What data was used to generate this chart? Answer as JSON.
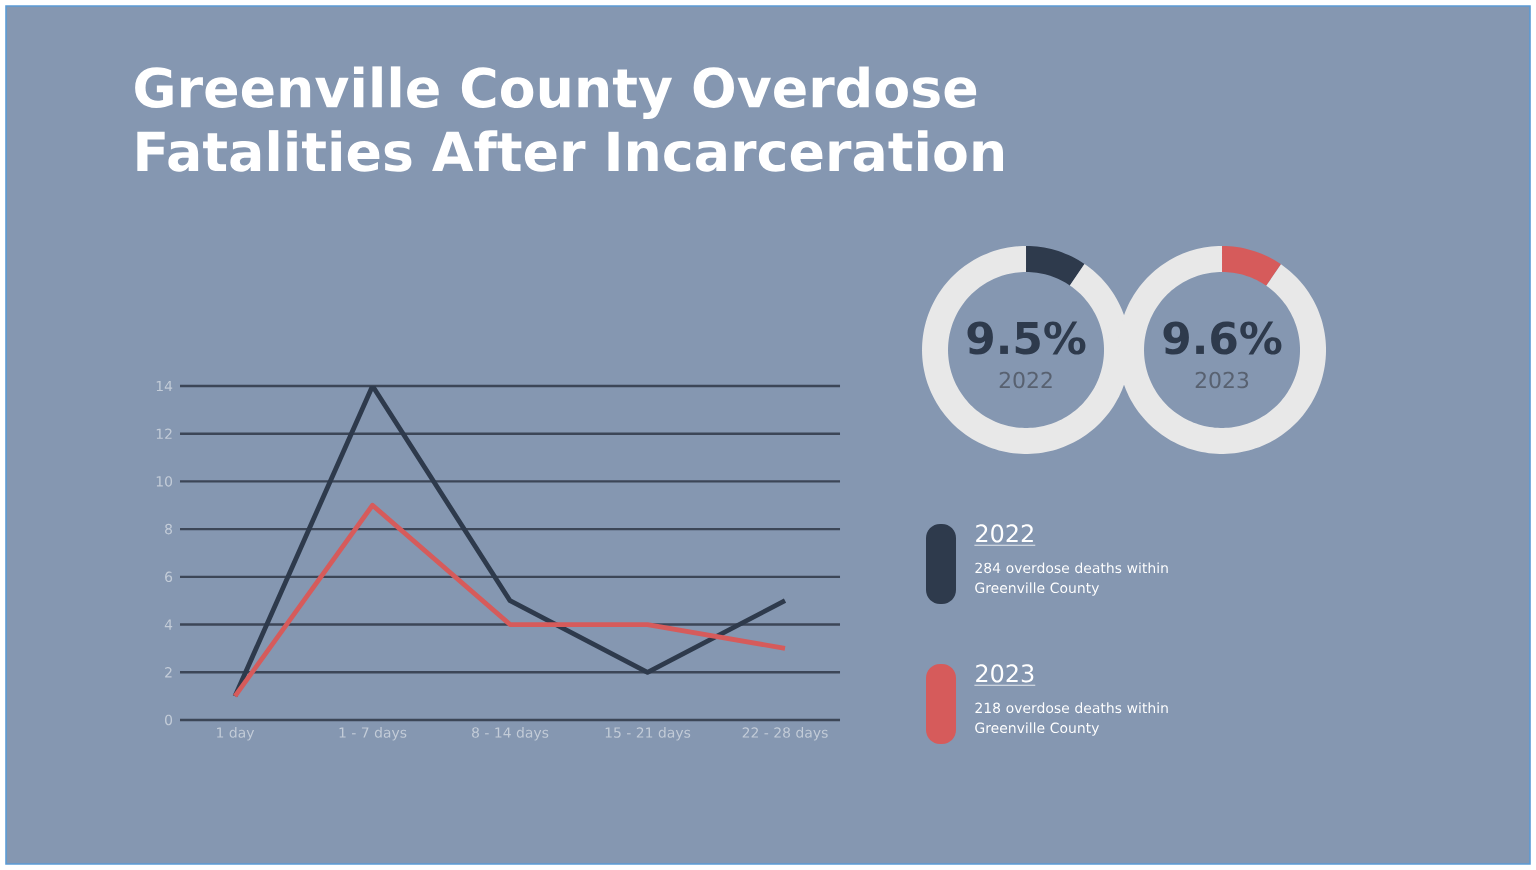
{
  "chart_data": [
    {
      "type": "line",
      "title": "Greenville County Overdose Fatalities After Incarceration",
      "categories": [
        "1 day",
        "1 - 7 days",
        "8 - 14 days",
        "15 - 21 days",
        "22 - 28 days"
      ],
      "series": [
        {
          "name": "2022",
          "color": "#2e3a4c",
          "values": [
            1,
            14,
            5,
            2,
            5
          ]
        },
        {
          "name": "2023",
          "color": "#d65b5b",
          "values": [
            1,
            9,
            4,
            4,
            3
          ]
        }
      ],
      "ylim": [
        0,
        14
      ],
      "yticks": [
        0,
        2,
        4,
        6,
        8,
        10,
        12,
        14
      ],
      "grid": "y",
      "legend": "right",
      "marker": "none",
      "annotations": [
        "284 overdose deaths within Greenville County",
        "218 overdose deaths within Greenville County"
      ]
    },
    {
      "type": "donut",
      "categories": [
        null,
        null
      ],
      "values": [
        9.5,
        90.5
      ],
      "colors": [
        "#2e3a4c",
        "#e8e8e8"
      ],
      "annotations": [
        "9.5%",
        "2022"
      ]
    },
    {
      "type": "donut",
      "categories": [
        null,
        null
      ],
      "values": [
        9.6,
        90.4
      ],
      "colors": [
        "#d65b5b",
        "#e8e8e8"
      ],
      "annotations": [
        "9.6%",
        "2023"
      ]
    }
  ]
}
